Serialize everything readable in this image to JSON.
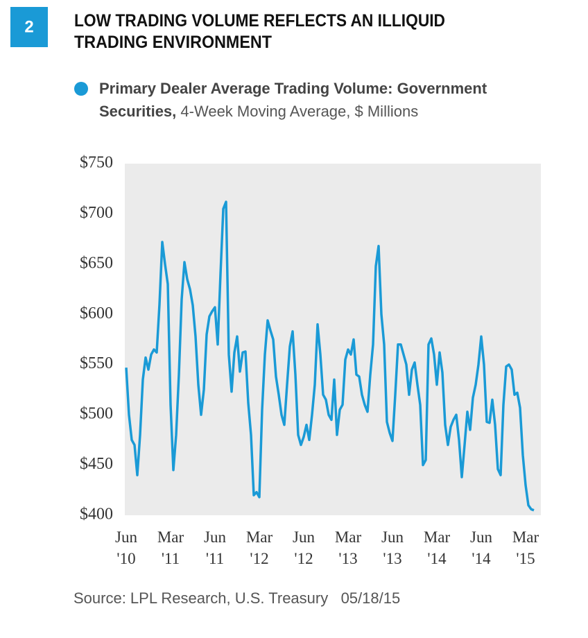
{
  "chart_data": {
    "type": "line",
    "badge": "2",
    "title": [
      "LOW TRADING VOLUME REFLECTS AN ILLIQUID",
      "TRADING ENVIRONMENT"
    ],
    "legend_note": "4-Week Moving Average, $ Millions",
    "source": "Source: LPL Research, U.S. Treasury   05/18/15",
    "xlim": [
      0,
      147
    ],
    "xticks": [
      {
        "value": 0,
        "label": [
          "Jun",
          "'10"
        ]
      },
      {
        "value": 16,
        "label": [
          "Mar",
          "'11"
        ]
      },
      {
        "value": 32,
        "label": [
          "Jun",
          "'11"
        ]
      },
      {
        "value": 48,
        "label": [
          "Mar",
          "'12"
        ]
      },
      {
        "value": 64,
        "label": [
          "Jun",
          "'12"
        ]
      },
      {
        "value": 80,
        "label": [
          "Mar",
          "'13"
        ]
      },
      {
        "value": 96,
        "label": [
          "Jun",
          "'13"
        ]
      },
      {
        "value": 112,
        "label": [
          "Mar",
          "'14"
        ]
      },
      {
        "value": 128,
        "label": [
          "Jun",
          "'14"
        ]
      },
      {
        "value": 144,
        "label": [
          "Mar",
          "'15"
        ]
      }
    ],
    "ylim": [
      400,
      750
    ],
    "yticks": [
      {
        "value": 400,
        "label": "$400"
      },
      {
        "value": 450,
        "label": "$450"
      },
      {
        "value": 500,
        "label": "$500"
      },
      {
        "value": 550,
        "label": "$550"
      },
      {
        "value": 600,
        "label": "$600"
      },
      {
        "value": 650,
        "label": "$650"
      },
      {
        "value": 700,
        "label": "$700"
      },
      {
        "value": 750,
        "label": "$750"
      }
    ],
    "grid": false,
    "series": [
      {
        "name": "Primary Dealer Average Trading Volume: Government Securities,",
        "color": "#1a9ad6",
        "values": [
          547,
          500,
          475,
          470,
          440,
          480,
          535,
          557,
          545,
          560,
          565,
          562,
          610,
          672,
          650,
          630,
          510,
          445,
          480,
          540,
          615,
          652,
          635,
          625,
          609,
          578,
          530,
          500,
          525,
          580,
          598,
          603,
          607,
          570,
          640,
          705,
          712,
          560,
          523,
          562,
          578,
          543,
          562,
          563,
          512,
          480,
          420,
          423,
          418,
          505,
          560,
          594,
          584,
          575,
          538,
          520,
          500,
          490,
          530,
          568,
          583,
          540,
          480,
          470,
          478,
          490,
          475,
          500,
          530,
          590,
          560,
          520,
          515,
          500,
          495,
          535,
          480,
          505,
          510,
          555,
          565,
          560,
          575,
          540,
          538,
          520,
          510,
          503,
          540,
          570,
          648,
          668,
          600,
          570,
          493,
          482,
          474,
          520,
          570,
          570,
          560,
          550,
          520,
          545,
          552,
          530,
          510,
          450,
          455,
          570,
          576,
          560,
          530,
          562,
          542,
          490,
          470,
          488,
          495,
          500,
          475,
          438,
          470,
          503,
          485,
          517,
          530,
          550,
          578,
          550,
          493,
          492,
          515,
          490,
          446,
          440,
          510,
          548,
          550,
          545,
          520,
          522,
          507,
          460,
          430,
          410,
          406,
          405
        ]
      }
    ]
  }
}
